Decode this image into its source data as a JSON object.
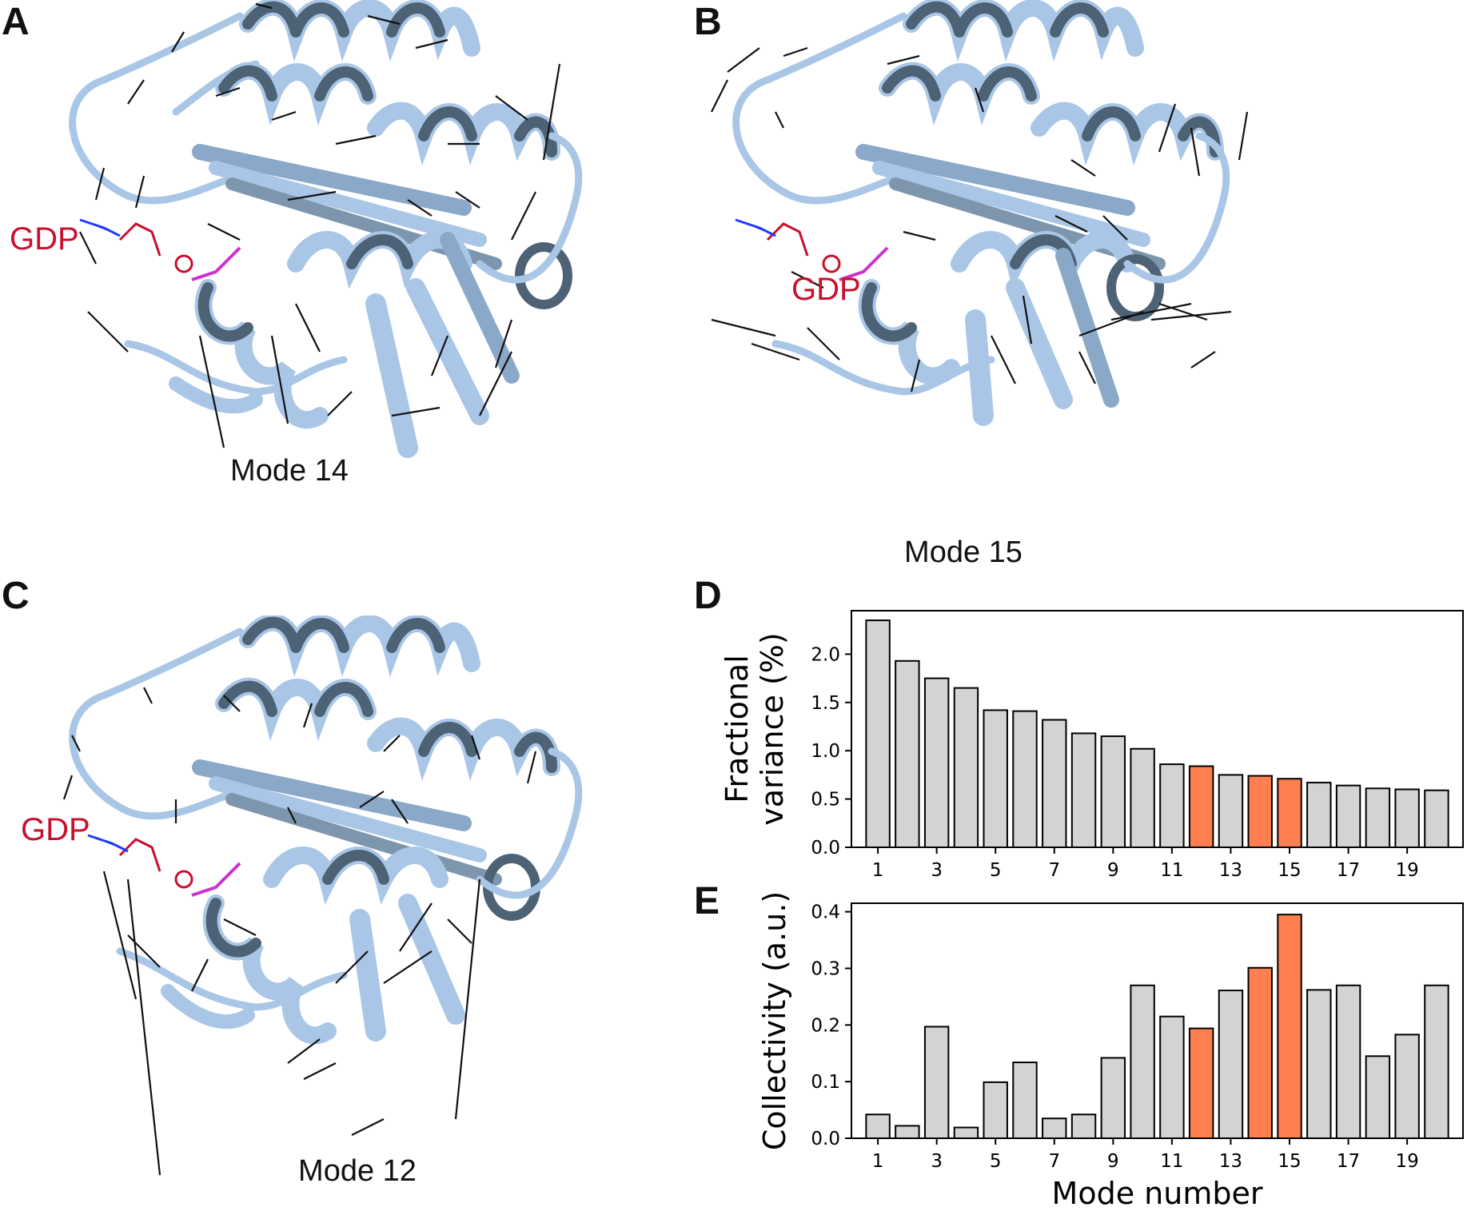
{
  "panels": {
    "a": {
      "letter": "A",
      "ligand": "GDP",
      "caption": "Mode 14"
    },
    "b": {
      "letter": "B",
      "ligand": "GDP",
      "caption": "Mode 15"
    },
    "c": {
      "letter": "C",
      "ligand": "GDP",
      "caption": "Mode 12"
    },
    "d": {
      "letter": "D"
    },
    "e": {
      "letter": "E"
    }
  },
  "colors": {
    "ribbon_light": "#a9c6e6",
    "ribbon_dark": "#4e6275",
    "bar_default": "#d3d3d3",
    "bar_highlight": "#ff7f50",
    "ligand_red": "#c8102e",
    "arrow": "#111111"
  },
  "chart_data": [
    {
      "type": "bar",
      "panel": "D",
      "categories": [
        1,
        2,
        3,
        4,
        5,
        6,
        7,
        8,
        9,
        10,
        11,
        12,
        13,
        14,
        15,
        16,
        17,
        18,
        19,
        20
      ],
      "values": [
        2.35,
        1.93,
        1.75,
        1.65,
        1.42,
        1.41,
        1.32,
        1.18,
        1.15,
        1.02,
        0.86,
        0.84,
        0.75,
        0.74,
        0.71,
        0.67,
        0.64,
        0.61,
        0.6,
        0.59
      ],
      "highlighted": [
        12,
        14,
        15
      ],
      "xticks": [
        "1",
        "3",
        "5",
        "7",
        "9",
        "11",
        "13",
        "15",
        "17",
        "19"
      ],
      "yticks": [
        "0.0",
        "0.5",
        "1.0",
        "1.5",
        "2.0"
      ],
      "ylabel_lines": [
        "Fractional",
        "variance (%)"
      ],
      "ylim": [
        0,
        2.45
      ]
    },
    {
      "type": "bar",
      "panel": "E",
      "categories": [
        1,
        2,
        3,
        4,
        5,
        6,
        7,
        8,
        9,
        10,
        11,
        12,
        13,
        14,
        15,
        16,
        17,
        18,
        19,
        20
      ],
      "values": [
        0.042,
        0.022,
        0.197,
        0.019,
        0.099,
        0.134,
        0.035,
        0.042,
        0.142,
        0.27,
        0.215,
        0.194,
        0.261,
        0.301,
        0.395,
        0.262,
        0.27,
        0.145,
        0.183,
        0.27
      ],
      "highlighted": [
        12,
        14,
        15
      ],
      "xticks": [
        "1",
        "3",
        "5",
        "7",
        "9",
        "11",
        "13",
        "15",
        "17",
        "19"
      ],
      "yticks": [
        "0.0",
        "0.1",
        "0.2",
        "0.3",
        "0.4"
      ],
      "ylabel": "Collectivity (a.u.)",
      "xlabel": "Mode number",
      "ylim": [
        0,
        0.415
      ]
    }
  ]
}
